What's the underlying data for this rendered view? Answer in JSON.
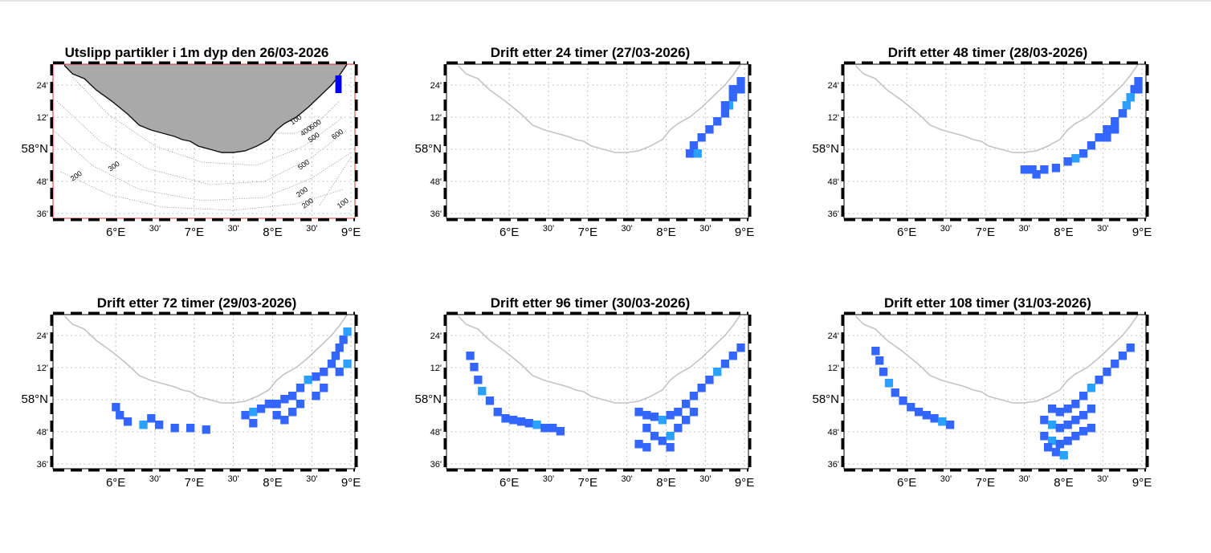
{
  "figure": {
    "panels": [
      {
        "title": "Utslipp partikler i 1m dyp den 26/03-2026",
        "kind": "release"
      },
      {
        "title": "Drift etter 24 timer (27/03-2026)",
        "kind": "drift"
      },
      {
        "title": "Drift etter 48 timer (28/03-2026)",
        "kind": "drift"
      },
      {
        "title": "Drift etter 72 timer (29/03-2026)",
        "kind": "drift"
      },
      {
        "title": "Drift etter 96 timer (30/03-2026)",
        "kind": "drift"
      },
      {
        "title": "Drift etter 108 timer (31/03-2026)",
        "kind": "drift"
      }
    ],
    "axes": {
      "x_ticks": [
        {
          "label": "6°E",
          "lon": 6.0,
          "major": true
        },
        {
          "label": "30'",
          "lon": 6.5,
          "major": false
        },
        {
          "label": "7°E",
          "lon": 7.0,
          "major": true
        },
        {
          "label": "30'",
          "lon": 7.5,
          "major": false
        },
        {
          "label": "8°E",
          "lon": 8.0,
          "major": true
        },
        {
          "label": "30'",
          "lon": 8.5,
          "major": false
        },
        {
          "label": "9°E",
          "lon": 9.0,
          "major": true
        }
      ],
      "y_ticks": [
        {
          "label": "24'",
          "lat": 58.4,
          "major": false
        },
        {
          "label": "12'",
          "lat": 58.2,
          "major": false
        },
        {
          "label": "58°N",
          "lat": 58.0,
          "major": true
        },
        {
          "label": "48'",
          "lat": 57.8,
          "major": false
        },
        {
          "label": "36'",
          "lat": 57.6,
          "major": false
        }
      ],
      "lon_range": [
        5.2,
        9.05
      ],
      "lat_range": [
        57.57,
        58.53
      ]
    },
    "depth_labels": [
      "100",
      "200",
      "200",
      "300",
      "400",
      "500",
      "500",
      "500",
      "600",
      "200",
      "100"
    ],
    "colors": {
      "particle": "#3366ff",
      "particle_light": "#2aa0ff",
      "release": "#0000ee",
      "land": "#a9a9a9",
      "coast": "#c3c3c3",
      "map_frame": "#e53030"
    },
    "coastline": [
      [
        5.35,
        58.52
      ],
      [
        5.45,
        58.47
      ],
      [
        5.6,
        58.44
      ],
      [
        5.75,
        58.37
      ],
      [
        5.95,
        58.3
      ],
      [
        6.15,
        58.22
      ],
      [
        6.3,
        58.15
      ],
      [
        6.45,
        58.12
      ],
      [
        6.6,
        58.1
      ],
      [
        6.75,
        58.08
      ],
      [
        6.85,
        58.06
      ],
      [
        6.95,
        58.05
      ],
      [
        7.05,
        58.02
      ],
      [
        7.2,
        58.0
      ],
      [
        7.35,
        57.98
      ],
      [
        7.5,
        57.98
      ],
      [
        7.65,
        57.99
      ],
      [
        7.8,
        58.02
      ],
      [
        7.95,
        58.06
      ],
      [
        8.05,
        58.12
      ],
      [
        8.15,
        58.16
      ],
      [
        8.3,
        58.2
      ],
      [
        8.45,
        58.26
      ],
      [
        8.6,
        58.33
      ],
      [
        8.75,
        58.4
      ],
      [
        8.85,
        58.46
      ],
      [
        8.95,
        58.53
      ]
    ],
    "cell_size": {
      "lon": 0.1,
      "lat": 0.05
    },
    "release_cell": {
      "lon0": 8.8,
      "lon1": 8.88,
      "lat0": 58.35,
      "lat1": 58.46
    },
    "particles": [
      [],
      [
        [
          8.9,
          58.4
        ],
        [
          8.85,
          58.35
        ],
        [
          8.8,
          58.3
        ],
        [
          8.75,
          58.25
        ],
        [
          8.7,
          58.2
        ],
        [
          8.6,
          58.15
        ],
        [
          8.5,
          58.1
        ],
        [
          8.4,
          58.05
        ],
        [
          8.3,
          58.0
        ],
        [
          8.25,
          57.95
        ],
        [
          8.35,
          57.95
        ],
        [
          8.8,
          58.35
        ],
        [
          8.9,
          58.35
        ],
        [
          8.7,
          58.25
        ]
      ],
      [
        [
          8.9,
          58.4
        ],
        [
          8.85,
          58.35
        ],
        [
          8.8,
          58.3
        ],
        [
          8.75,
          58.25
        ],
        [
          8.7,
          58.2
        ],
        [
          8.6,
          58.15
        ],
        [
          8.5,
          58.1
        ],
        [
          8.4,
          58.05
        ],
        [
          8.3,
          58.0
        ],
        [
          8.2,
          57.95
        ],
        [
          8.1,
          57.92
        ],
        [
          8.0,
          57.9
        ],
        [
          7.85,
          57.86
        ],
        [
          7.7,
          57.85
        ],
        [
          7.55,
          57.85
        ],
        [
          7.45,
          57.85
        ],
        [
          7.6,
          57.82
        ],
        [
          8.8,
          58.3
        ],
        [
          8.7,
          58.2
        ],
        [
          8.6,
          58.1
        ],
        [
          8.5,
          58.05
        ],
        [
          8.9,
          58.35
        ]
      ],
      [
        [
          5.95,
          57.93
        ],
        [
          6.0,
          57.88
        ],
        [
          6.1,
          57.84
        ],
        [
          6.3,
          57.82
        ],
        [
          6.5,
          57.82
        ],
        [
          6.7,
          57.8
        ],
        [
          6.9,
          57.8
        ],
        [
          7.1,
          57.79
        ],
        [
          6.4,
          57.86
        ],
        [
          7.6,
          57.88
        ],
        [
          7.7,
          57.9
        ],
        [
          7.8,
          57.92
        ],
        [
          7.9,
          57.95
        ],
        [
          8.0,
          57.95
        ],
        [
          8.1,
          57.98
        ],
        [
          8.2,
          58.0
        ],
        [
          8.3,
          58.05
        ],
        [
          8.4,
          58.1
        ],
        [
          8.5,
          58.12
        ],
        [
          8.6,
          58.15
        ],
        [
          8.7,
          58.2
        ],
        [
          8.75,
          58.25
        ],
        [
          8.8,
          58.3
        ],
        [
          8.85,
          58.35
        ],
        [
          8.9,
          58.4
        ],
        [
          8.0,
          57.88
        ],
        [
          8.2,
          57.9
        ],
        [
          8.3,
          57.95
        ],
        [
          8.5,
          58.0
        ],
        [
          8.6,
          58.05
        ],
        [
          8.8,
          58.15
        ],
        [
          8.9,
          58.2
        ],
        [
          7.7,
          57.83
        ],
        [
          8.1,
          57.85
        ]
      ],
      [
        [
          5.45,
          58.25
        ],
        [
          5.5,
          58.18
        ],
        [
          5.55,
          58.1
        ],
        [
          5.6,
          58.03
        ],
        [
          5.7,
          57.97
        ],
        [
          5.8,
          57.9
        ],
        [
          5.9,
          57.86
        ],
        [
          6.0,
          57.85
        ],
        [
          6.1,
          57.84
        ],
        [
          6.2,
          57.83
        ],
        [
          6.3,
          57.82
        ],
        [
          6.4,
          57.8
        ],
        [
          6.5,
          57.8
        ],
        [
          6.6,
          57.78
        ],
        [
          7.6,
          57.9
        ],
        [
          7.7,
          57.88
        ],
        [
          7.8,
          57.87
        ],
        [
          7.9,
          57.85
        ],
        [
          8.0,
          57.88
        ],
        [
          8.1,
          57.9
        ],
        [
          8.2,
          57.95
        ],
        [
          8.3,
          58.0
        ],
        [
          8.4,
          58.05
        ],
        [
          8.5,
          58.1
        ],
        [
          8.6,
          58.15
        ],
        [
          8.7,
          58.2
        ],
        [
          8.8,
          58.25
        ],
        [
          8.9,
          58.3
        ],
        [
          7.7,
          57.8
        ],
        [
          7.8,
          57.75
        ],
        [
          7.9,
          57.72
        ],
        [
          8.0,
          57.75
        ],
        [
          8.1,
          57.8
        ],
        [
          8.2,
          57.85
        ],
        [
          8.3,
          57.9
        ],
        [
          7.6,
          57.7
        ],
        [
          7.7,
          57.68
        ],
        [
          8.0,
          57.68
        ]
      ],
      [
        [
          5.55,
          58.28
        ],
        [
          5.6,
          58.22
        ],
        [
          5.65,
          58.15
        ],
        [
          5.72,
          58.08
        ],
        [
          5.8,
          58.02
        ],
        [
          5.9,
          57.97
        ],
        [
          6.0,
          57.93
        ],
        [
          6.1,
          57.9
        ],
        [
          6.2,
          57.88
        ],
        [
          6.3,
          57.86
        ],
        [
          6.4,
          57.84
        ],
        [
          6.5,
          57.82
        ],
        [
          7.8,
          57.92
        ],
        [
          7.9,
          57.9
        ],
        [
          8.0,
          57.92
        ],
        [
          8.1,
          57.95
        ],
        [
          8.2,
          58.0
        ],
        [
          8.3,
          58.05
        ],
        [
          8.4,
          58.1
        ],
        [
          8.5,
          58.15
        ],
        [
          8.6,
          58.2
        ],
        [
          8.7,
          58.25
        ],
        [
          8.8,
          58.3
        ],
        [
          7.7,
          57.85
        ],
        [
          7.8,
          57.82
        ],
        [
          7.9,
          57.8
        ],
        [
          8.0,
          57.82
        ],
        [
          8.1,
          57.85
        ],
        [
          8.2,
          57.88
        ],
        [
          8.3,
          57.92
        ],
        [
          7.7,
          57.75
        ],
        [
          7.8,
          57.72
        ],
        [
          7.9,
          57.7
        ],
        [
          8.0,
          57.72
        ],
        [
          8.1,
          57.75
        ],
        [
          8.2,
          57.78
        ],
        [
          8.3,
          57.8
        ],
        [
          7.85,
          57.65
        ],
        [
          7.95,
          57.63
        ],
        [
          7.75,
          57.68
        ]
      ]
    ]
  }
}
